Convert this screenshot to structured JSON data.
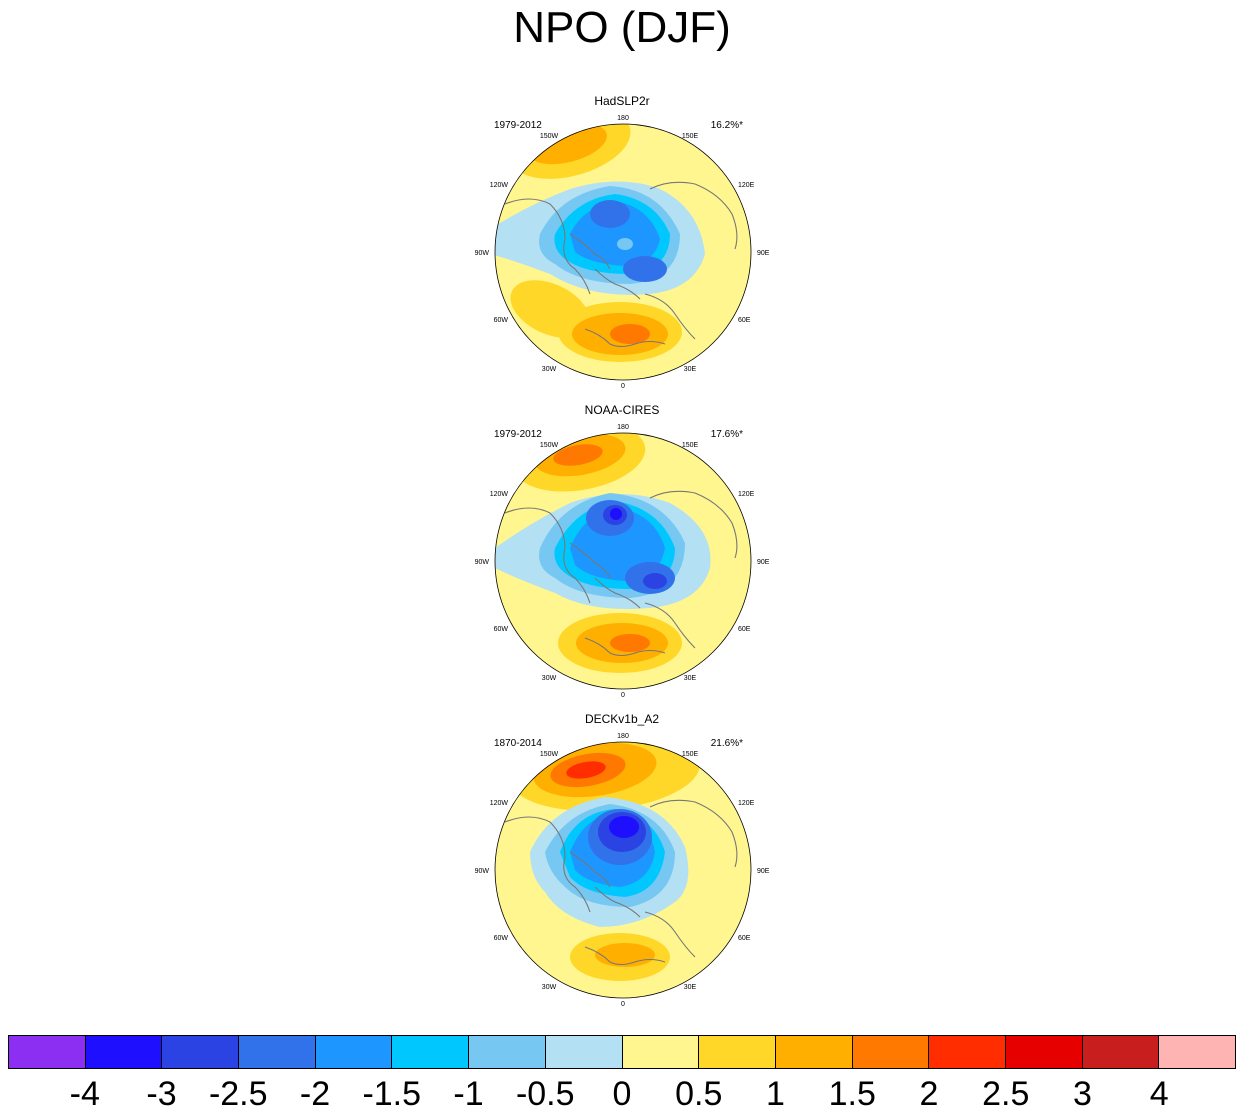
{
  "title": "NPO (DJF)",
  "panels": [
    {
      "name": "HadSLP2r",
      "period": "1979-2012",
      "variance": "16.2%*"
    },
    {
      "name": "NOAA-CIRES",
      "period": "1979-2012",
      "variance": "17.6%*"
    },
    {
      "name": "DECKv1b_A2",
      "period": "1870-2014",
      "variance": "21.6%*"
    }
  ],
  "longitude_labels": [
    "180",
    "150E",
    "120E",
    "90E",
    "60E",
    "30E",
    "0",
    "30W",
    "60W",
    "90W",
    "120W",
    "150W"
  ],
  "colorbar": {
    "colors": [
      "#8c2ff2",
      "#1e0fff",
      "#2b43e3",
      "#3172eb",
      "#1e96ff",
      "#00c8ff",
      "#76c8f2",
      "#b4e0f4",
      "#fff68f",
      "#ffd728",
      "#ffaf00",
      "#ff7800",
      "#ff2d00",
      "#e60000",
      "#c81e1e",
      "#ffb4b4"
    ],
    "labels": [
      "-4",
      "-3",
      "-2.5",
      "-2",
      "-1.5",
      "-1",
      "-0.5",
      "0",
      "0.5",
      "1",
      "1.5",
      "2",
      "2.5",
      "3",
      "4"
    ]
  }
}
